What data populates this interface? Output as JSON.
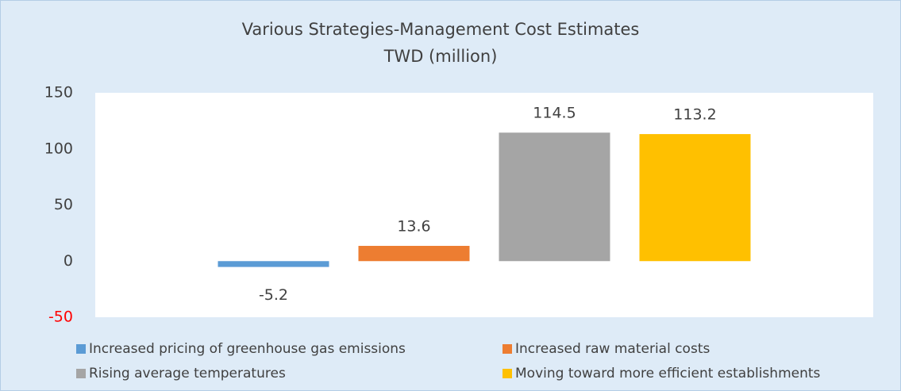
{
  "chart_data": {
    "type": "bar",
    "title": "Various Strategies-Management Cost Estimates",
    "subtitle": "TWD (million)",
    "categories": [
      null
    ],
    "series": [
      {
        "name": "Increased pricing of greenhouse gas emissions",
        "color": "#5b9bd5",
        "values": [
          -5.2
        ]
      },
      {
        "name": "Increased raw material costs",
        "color": "#ed7d31",
        "values": [
          13.6
        ]
      },
      {
        "name": "Rising average temperatures",
        "color": "#a5a5a5",
        "values": [
          114.5
        ]
      },
      {
        "name": "Moving toward more efficient establishments",
        "color": "#ffc000",
        "values": [
          113.2
        ]
      }
    ],
    "ylim": [
      -50,
      150
    ],
    "yticks": [
      -50,
      0,
      50,
      100,
      150
    ],
    "negative_tick_color": "#ff0000",
    "grid": false,
    "legend": "bottom"
  }
}
